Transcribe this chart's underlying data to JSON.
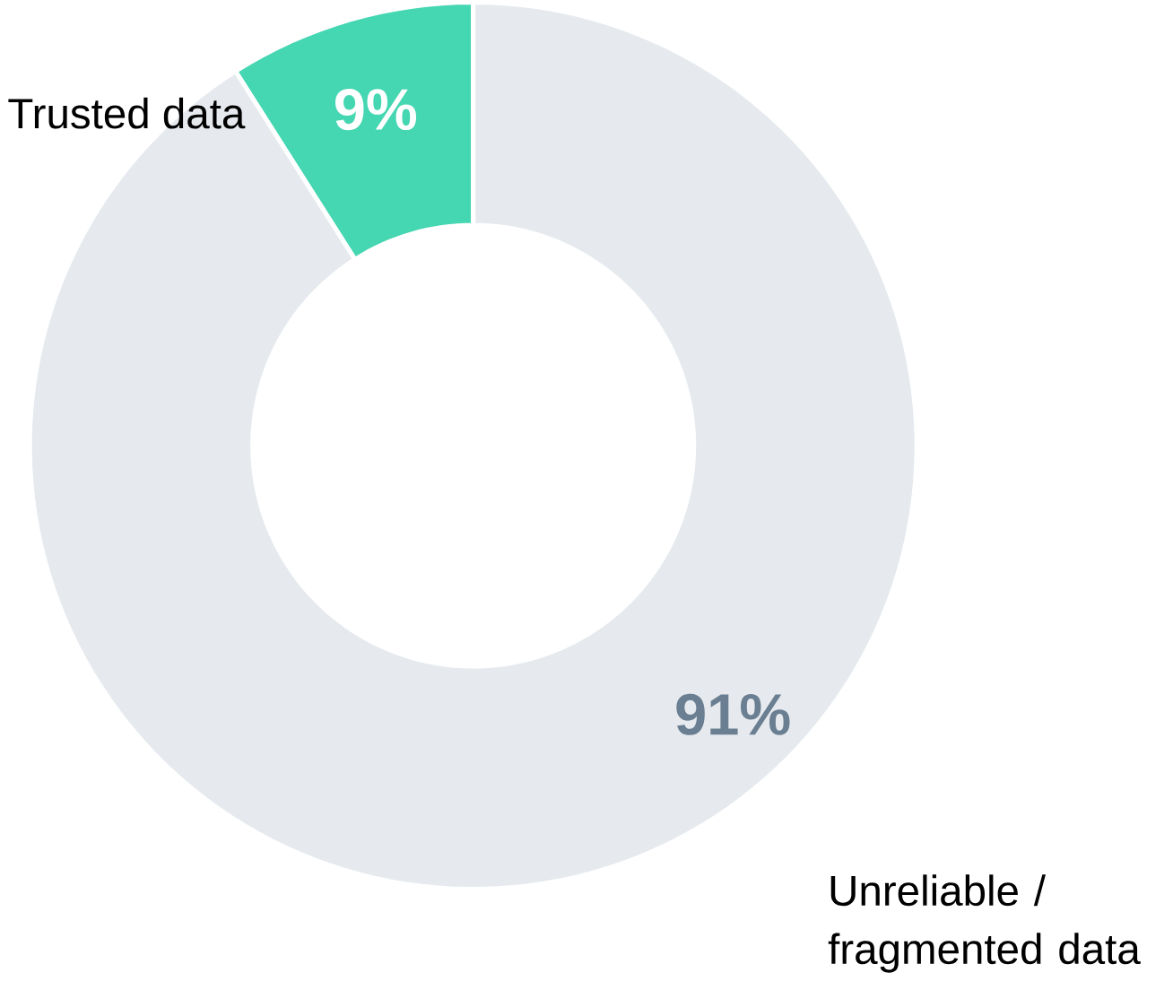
{
  "chart_data": {
    "type": "donut",
    "categories": [
      "Trusted data",
      "Unreliable / fragmented data"
    ],
    "values": [
      9,
      91
    ],
    "colors": [
      "#45d6b2",
      "#e6eaee"
    ],
    "value_labels": [
      "9%",
      "91%"
    ]
  }
}
